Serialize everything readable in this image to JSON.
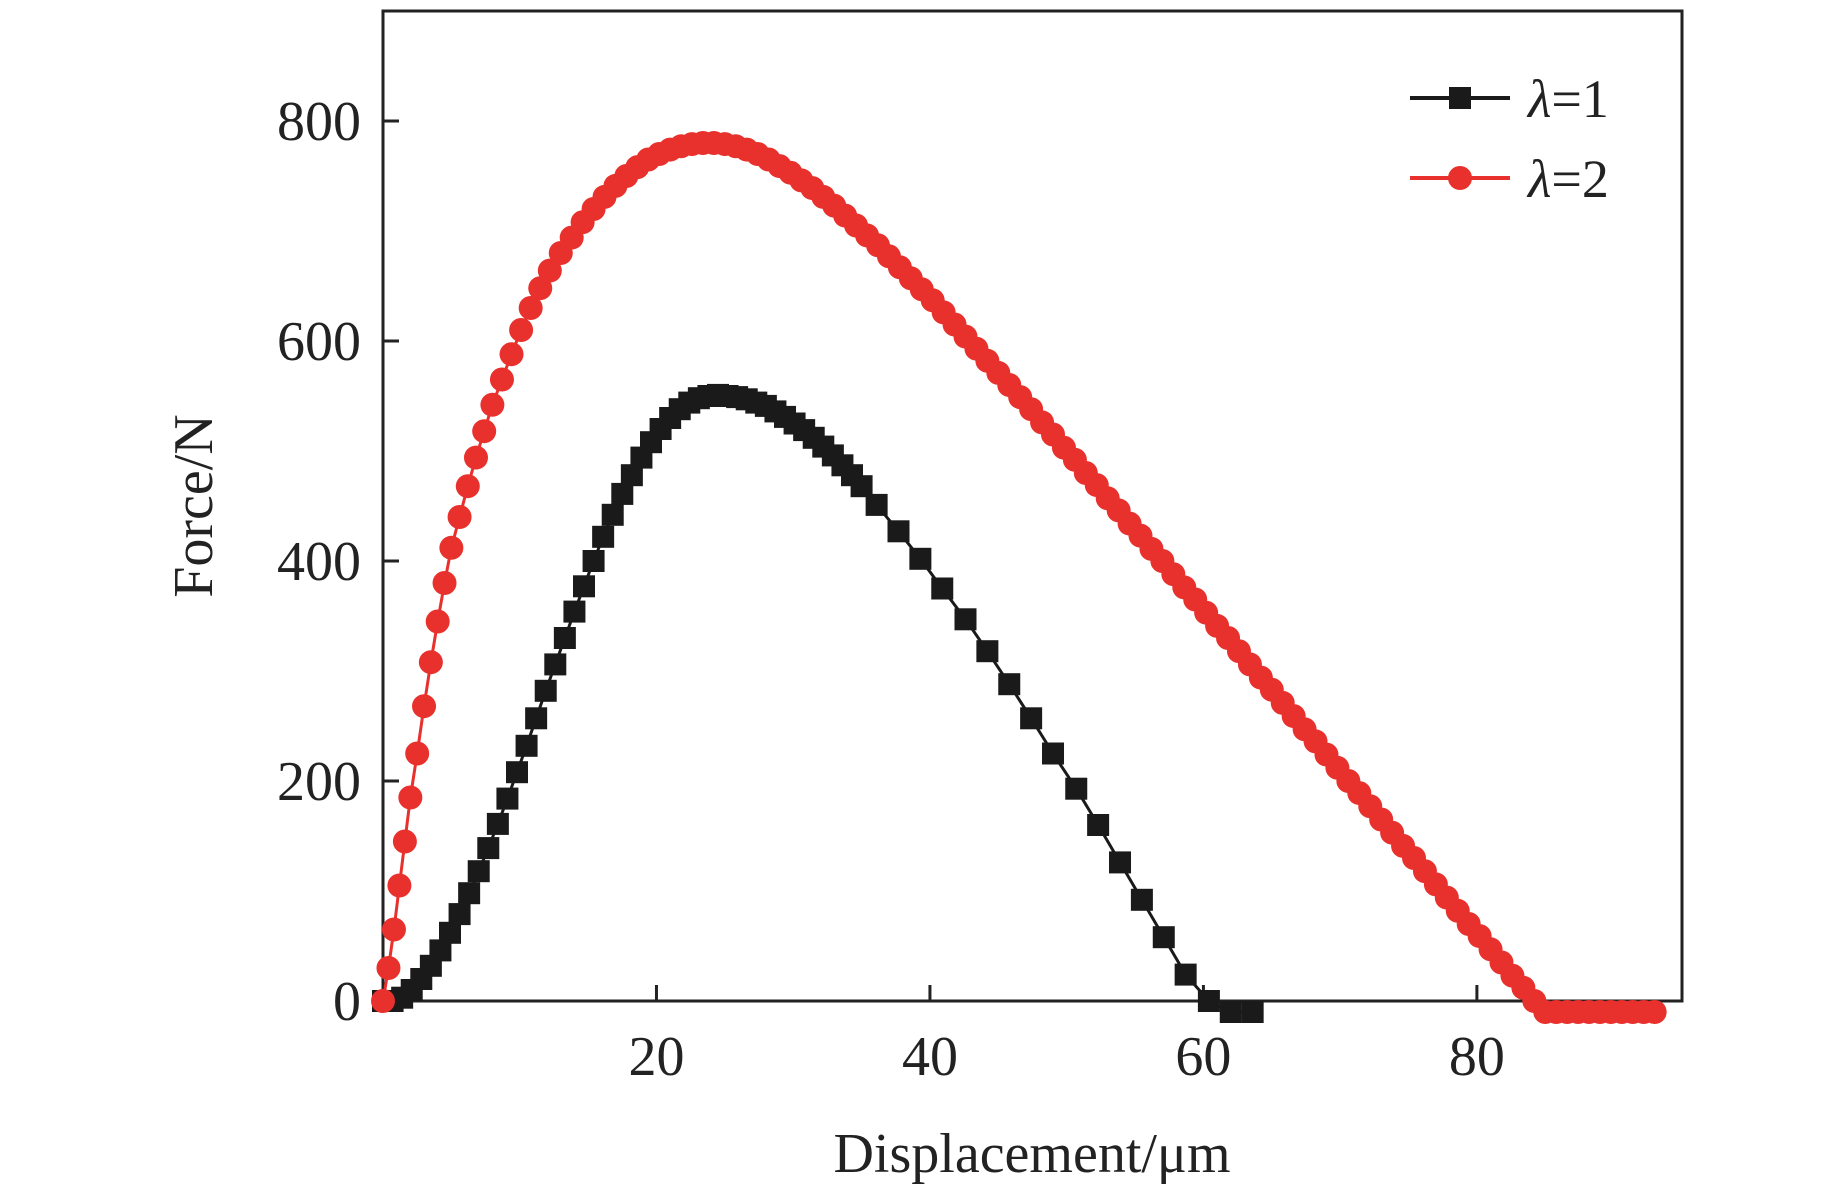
{
  "chart_data": {
    "type": "line",
    "title": "",
    "xlabel": "Displacement/μm",
    "ylabel": "Force/N",
    "xlim": [
      0,
      95
    ],
    "ylim": [
      0,
      900
    ],
    "xticks": [
      20,
      40,
      60,
      80
    ],
    "yticks": [
      0,
      200,
      400,
      600,
      800
    ],
    "grid": false,
    "legend_position": "top-right",
    "series": [
      {
        "name": "λ=1",
        "legend_var": "λ",
        "legend_val": "=1",
        "color": "#1a1a1a",
        "marker": "square",
        "x": [
          0.0,
          0.7,
          1.4,
          2.1,
          2.8,
          3.5,
          4.2,
          4.9,
          5.6,
          6.3,
          7.0,
          7.7,
          8.4,
          9.1,
          9.8,
          10.5,
          11.2,
          11.9,
          12.6,
          13.3,
          14.0,
          14.7,
          15.4,
          16.1,
          16.8,
          17.5,
          18.2,
          18.9,
          19.6,
          20.3,
          21.0,
          21.7,
          22.4,
          23.1,
          23.8,
          24.5,
          25.2,
          25.9,
          26.6,
          27.3,
          28.0,
          28.7,
          29.4,
          30.1,
          30.8,
          31.5,
          32.2,
          32.9,
          33.6,
          34.3,
          35.0,
          36.1,
          37.7,
          39.3,
          40.9,
          42.6,
          44.2,
          45.8,
          47.4,
          49.0,
          50.7,
          52.3,
          53.9,
          55.5,
          57.1,
          58.7,
          60.4,
          62.0,
          63.6
        ],
        "y": [
          0,
          0,
          3,
          10,
          20,
          32,
          46,
          62,
          79,
          98,
          118,
          139,
          161,
          184,
          208,
          232,
          257,
          282,
          306,
          330,
          354,
          377,
          400,
          422,
          442,
          461,
          478,
          494,
          508,
          520,
          530,
          538,
          544,
          548,
          550,
          551,
          550,
          549,
          547,
          544,
          541,
          536,
          531,
          525,
          519,
          512,
          504,
          496,
          487,
          478,
          468,
          451,
          427,
          402,
          375,
          347,
          318,
          288,
          257,
          225,
          193,
          160,
          126,
          92,
          58,
          24,
          0,
          -10,
          -10
        ]
      },
      {
        "name": "λ=2",
        "legend_var": "λ",
        "legend_val": "=2",
        "color": "#e8302c",
        "marker": "circle",
        "x": [
          0.0,
          0.4,
          0.8,
          1.2,
          1.6,
          2.0,
          2.5,
          3.0,
          3.5,
          4.0,
          4.5,
          5.0,
          5.6,
          6.2,
          6.8,
          7.4,
          8.0,
          8.7,
          9.4,
          10.1,
          10.8,
          11.5,
          12.2,
          13.0,
          13.8,
          14.6,
          15.4,
          16.2,
          17.0,
          17.8,
          18.6,
          19.4,
          20.2,
          21.0,
          21.8,
          22.6,
          23.4,
          24.2,
          25.0,
          25.8,
          26.6,
          27.4,
          28.2,
          29.0,
          29.8,
          30.6,
          31.4,
          32.2,
          33.0,
          33.8,
          34.6,
          35.4,
          36.2,
          37.0,
          37.8,
          38.6,
          39.4,
          40.2,
          41.0,
          41.8,
          42.6,
          43.4,
          44.2,
          45.0,
          45.8,
          46.6,
          47.4,
          48.2,
          49.0,
          49.8,
          50.6,
          51.4,
          52.2,
          53.0,
          53.8,
          54.6,
          55.4,
          56.2,
          57.0,
          57.8,
          58.6,
          59.4,
          60.2,
          61.0,
          61.8,
          62.6,
          63.4,
          64.2,
          65.0,
          65.8,
          66.6,
          67.4,
          68.2,
          69.0,
          69.8,
          70.6,
          71.4,
          72.2,
          73.0,
          73.8,
          74.6,
          75.4,
          76.2,
          77.0,
          77.8,
          78.6,
          79.4,
          80.2,
          81.0,
          81.8,
          82.6,
          83.4,
          84.2,
          85.0,
          85.8,
          86.6,
          87.4,
          88.2,
          89.0,
          89.8,
          90.6,
          91.4,
          92.2,
          93.0
        ],
        "y": [
          0,
          30,
          65,
          105,
          145,
          185,
          225,
          268,
          308,
          345,
          380,
          412,
          440,
          468,
          494,
          518,
          542,
          565,
          588,
          610,
          630,
          648,
          664,
          680,
          694,
          708,
          720,
          731,
          741,
          750,
          758,
          765,
          770,
          774,
          777,
          779,
          780,
          780,
          779,
          777,
          774,
          770,
          765,
          759,
          753,
          746,
          739,
          731,
          723,
          714,
          705,
          696,
          687,
          677,
          667,
          657,
          647,
          637,
          626,
          615,
          604,
          593,
          582,
          571,
          560,
          549,
          538,
          526,
          515,
          503,
          492,
          480,
          469,
          457,
          446,
          434,
          423,
          411,
          400,
          388,
          376,
          365,
          353,
          341,
          330,
          318,
          306,
          294,
          283,
          271,
          259,
          247,
          236,
          224,
          212,
          200,
          189,
          177,
          165,
          153,
          141,
          130,
          118,
          106,
          94,
          82,
          70,
          59,
          47,
          35,
          23,
          12,
          0,
          -10,
          -10,
          -10,
          -10,
          -10,
          -10,
          -10,
          -10,
          -10,
          -10,
          -10
        ]
      }
    ]
  }
}
